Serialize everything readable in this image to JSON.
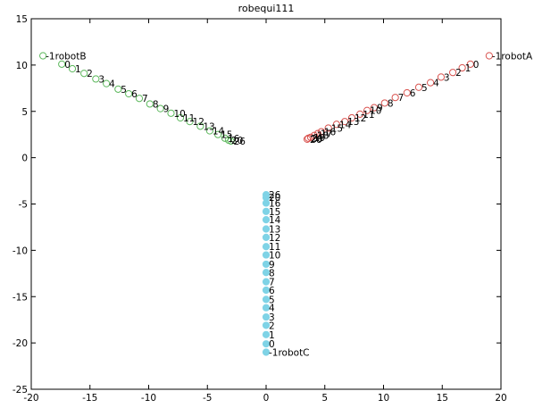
{
  "chart_data": {
    "type": "scatter",
    "title": "robequi111",
    "xlabel": "",
    "ylabel": "",
    "xlim": [
      -20,
      20
    ],
    "ylim": [
      -25,
      15
    ],
    "x_ticks": [
      -20,
      -15,
      -10,
      -5,
      0,
      5,
      10,
      15,
      20
    ],
    "y_ticks": [
      15,
      10,
      5,
      0,
      -5,
      -10,
      -15,
      -20,
      -25
    ],
    "x_tick_labels": [
      "-20",
      "-15",
      "-10",
      "-5",
      "0",
      "5",
      "10",
      "15",
      "20"
    ],
    "y_tick_labels": [
      "15",
      "10",
      "5",
      "0",
      "-5",
      "-10",
      "-15",
      "-20",
      "-25"
    ],
    "grid": false,
    "series": [
      {
        "name": "robotA",
        "color": "#d9534f",
        "marker": "circle-open",
        "points": [
          {
            "label": "-1robotA",
            "x": 19.0,
            "y": 11.0
          },
          {
            "label": "0",
            "x": 17.4,
            "y": 10.1
          },
          {
            "label": "1",
            "x": 16.7,
            "y": 9.7
          },
          {
            "label": "2",
            "x": 15.9,
            "y": 9.2
          },
          {
            "label": "3",
            "x": 14.9,
            "y": 8.7
          },
          {
            "label": "4",
            "x": 14.0,
            "y": 8.1
          },
          {
            "label": "5",
            "x": 13.0,
            "y": 7.6
          },
          {
            "label": "6",
            "x": 12.0,
            "y": 7.0
          },
          {
            "label": "7",
            "x": 11.0,
            "y": 6.5
          },
          {
            "label": "8",
            "x": 10.1,
            "y": 5.9
          },
          {
            "label": "9",
            "x": 9.2,
            "y": 5.4
          },
          {
            "label": "10",
            "x": 8.6,
            "y": 5.1
          },
          {
            "label": "11",
            "x": 8.0,
            "y": 4.7
          },
          {
            "label": "12",
            "x": 7.3,
            "y": 4.3
          },
          {
            "label": "13",
            "x": 6.7,
            "y": 3.9
          },
          {
            "label": "14",
            "x": 6.0,
            "y": 3.6
          },
          {
            "label": "15",
            "x": 5.3,
            "y": 3.2
          },
          {
            "label": "16",
            "x": 4.7,
            "y": 2.8
          },
          {
            "label": "17",
            "x": 4.4,
            "y": 2.6
          },
          {
            "label": "18",
            "x": 4.1,
            "y": 2.4
          },
          {
            "label": "19",
            "x": 3.8,
            "y": 2.2
          },
          {
            "label": "20",
            "x": 3.6,
            "y": 2.1
          },
          {
            "label": "26",
            "x": 3.5,
            "y": 2.0
          }
        ]
      },
      {
        "name": "robotB",
        "color": "#5cb85c",
        "marker": "circle-open",
        "points": [
          {
            "label": "-1robotB",
            "x": -19.0,
            "y": 11.0
          },
          {
            "label": "0",
            "x": -17.4,
            "y": 10.1
          },
          {
            "label": "1",
            "x": -16.5,
            "y": 9.6
          },
          {
            "label": "2",
            "x": -15.5,
            "y": 9.1
          },
          {
            "label": "3",
            "x": -14.5,
            "y": 8.5
          },
          {
            "label": "4",
            "x": -13.6,
            "y": 8.0
          },
          {
            "label": "5",
            "x": -12.6,
            "y": 7.4
          },
          {
            "label": "6",
            "x": -11.7,
            "y": 6.9
          },
          {
            "label": "7",
            "x": -10.8,
            "y": 6.4
          },
          {
            "label": "8",
            "x": -9.9,
            "y": 5.8
          },
          {
            "label": "9",
            "x": -9.0,
            "y": 5.3
          },
          {
            "label": "10",
            "x": -8.1,
            "y": 4.8
          },
          {
            "label": "11",
            "x": -7.3,
            "y": 4.3
          },
          {
            "label": "12",
            "x": -6.5,
            "y": 3.9
          },
          {
            "label": "13",
            "x": -5.6,
            "y": 3.4
          },
          {
            "label": "14",
            "x": -4.8,
            "y": 2.9
          },
          {
            "label": "15",
            "x": -4.1,
            "y": 2.5
          },
          {
            "label": "16",
            "x": -3.5,
            "y": 2.1
          },
          {
            "label": "20",
            "x": -3.2,
            "y": 1.9
          },
          {
            "label": "26",
            "x": -3.0,
            "y": 1.8
          }
        ]
      },
      {
        "name": "robotC",
        "color": "#7fd3e6",
        "marker": "circle",
        "points": [
          {
            "label": "-1robotC",
            "x": 0.0,
            "y": -21.0
          },
          {
            "label": "0",
            "x": 0.0,
            "y": -20.1
          },
          {
            "label": "1",
            "x": 0.0,
            "y": -19.1
          },
          {
            "label": "2",
            "x": 0.0,
            "y": -18.1
          },
          {
            "label": "3",
            "x": 0.0,
            "y": -17.2
          },
          {
            "label": "4",
            "x": 0.0,
            "y": -16.2
          },
          {
            "label": "5",
            "x": 0.0,
            "y": -15.3
          },
          {
            "label": "6",
            "x": 0.0,
            "y": -14.3
          },
          {
            "label": "7",
            "x": 0.0,
            "y": -13.4
          },
          {
            "label": "8",
            "x": 0.0,
            "y": -12.4
          },
          {
            "label": "9",
            "x": 0.0,
            "y": -11.5
          },
          {
            "label": "10",
            "x": 0.0,
            "y": -10.5
          },
          {
            "label": "11",
            "x": 0.0,
            "y": -9.6
          },
          {
            "label": "12",
            "x": 0.0,
            "y": -8.6
          },
          {
            "label": "13",
            "x": 0.0,
            "y": -7.7
          },
          {
            "label": "14",
            "x": 0.0,
            "y": -6.7
          },
          {
            "label": "15",
            "x": 0.0,
            "y": -5.8
          },
          {
            "label": "16",
            "x": 0.0,
            "y": -4.9
          },
          {
            "label": "20",
            "x": 0.0,
            "y": -4.3
          },
          {
            "label": "26",
            "x": 0.0,
            "y": -4.0
          }
        ]
      }
    ]
  }
}
